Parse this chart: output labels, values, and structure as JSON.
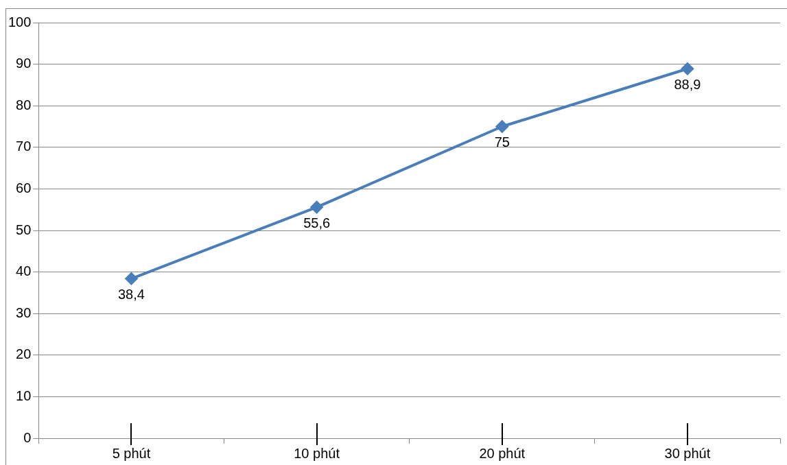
{
  "chart_data": {
    "type": "line",
    "categories": [
      "5 phút",
      "10 phút",
      "20 phút",
      "30 phút"
    ],
    "series": [
      {
        "color": "#4a7ebb",
        "values": [
          38.4,
          55.6,
          75,
          88.9
        ],
        "value_labels": [
          "38,4",
          "55,6",
          "75",
          "88,9"
        ]
      }
    ],
    "ylim": [
      0,
      100
    ],
    "yticks": [
      0,
      10,
      20,
      30,
      40,
      50,
      60,
      70,
      80,
      90,
      100
    ],
    "grid": "y",
    "legend": false,
    "marker": "diamond",
    "line_style": "solid"
  }
}
